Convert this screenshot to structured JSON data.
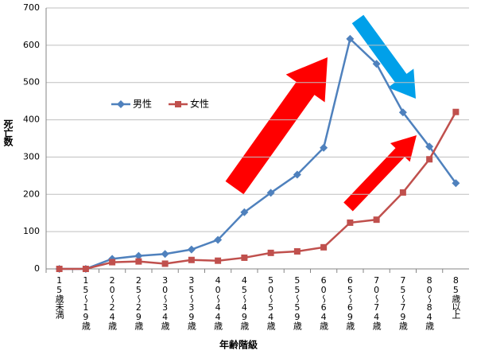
{
  "chart_data": {
    "type": "line",
    "categories": [
      "15歳未満",
      "15〜19歳",
      "20〜24歳",
      "25〜29歳",
      "30〜34歳",
      "35〜39歳",
      "40〜44歳",
      "45〜49歳",
      "50〜54歳",
      "55〜59歳",
      "60〜64歳",
      "65〜69歳",
      "70〜74歳",
      "75〜79歳",
      "80〜84歳",
      "85歳以上"
    ],
    "series": [
      {
        "name": "男性",
        "color": "#4f81bd",
        "values": [
          0,
          0,
          27,
          35,
          40,
          52,
          78,
          152,
          204,
          253,
          325,
          617,
          550,
          420,
          328,
          230
        ]
      },
      {
        "name": "女性",
        "color": "#c0504d",
        "values": [
          0,
          0,
          18,
          20,
          14,
          24,
          22,
          30,
          43,
          47,
          58,
          124,
          132,
          205,
          294,
          421
        ]
      }
    ],
    "ylabel": "死亡数",
    "xlabel": "年齢階級",
    "ylim": [
      0,
      700
    ],
    "yticks": [
      0,
      100,
      200,
      300,
      400,
      500,
      600,
      700
    ],
    "grid": true
  }
}
